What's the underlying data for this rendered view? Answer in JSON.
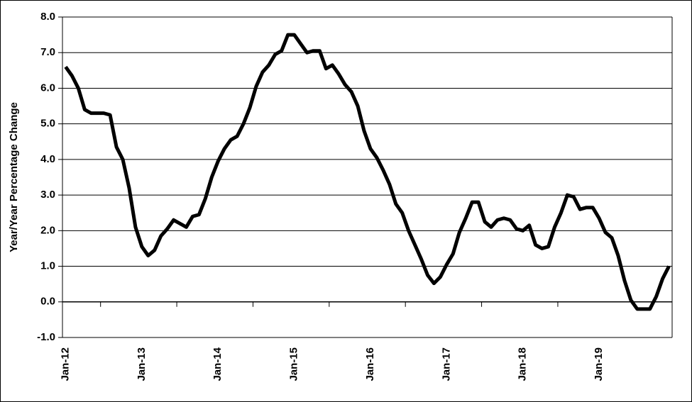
{
  "chart_data": {
    "type": "line",
    "y_label": "Year/Year Percentage Change",
    "categories": [
      "Jan-12",
      null,
      null,
      null,
      null,
      null,
      null,
      null,
      null,
      null,
      null,
      null,
      "Jan-13",
      null,
      null,
      null,
      null,
      null,
      null,
      null,
      null,
      null,
      null,
      null,
      "Jan-14",
      null,
      null,
      null,
      null,
      null,
      null,
      null,
      null,
      null,
      null,
      null,
      "Jan-15",
      null,
      null,
      null,
      null,
      null,
      null,
      null,
      null,
      null,
      null,
      null,
      "Jan-16",
      null,
      null,
      null,
      null,
      null,
      null,
      null,
      null,
      null,
      null,
      null,
      "Jan-17",
      null,
      null,
      null,
      null,
      null,
      null,
      null,
      null,
      null,
      null,
      null,
      "Jan-18",
      null,
      null,
      null,
      null,
      null,
      null,
      null,
      null,
      null,
      null,
      null,
      "Jan-19",
      null,
      null,
      null,
      null,
      null,
      null,
      null,
      null,
      null,
      null,
      null
    ],
    "values": [
      6.6,
      6.35,
      6.0,
      5.4,
      5.3,
      5.3,
      5.3,
      5.25,
      4.35,
      4.0,
      3.2,
      2.1,
      1.55,
      1.3,
      1.45,
      1.85,
      2.05,
      2.3,
      2.2,
      2.1,
      2.4,
      2.45,
      2.9,
      3.5,
      3.95,
      4.3,
      4.55,
      4.65,
      5.0,
      5.45,
      6.05,
      6.45,
      6.65,
      6.95,
      7.05,
      7.5,
      7.5,
      7.25,
      7.0,
      7.05,
      7.05,
      6.55,
      6.65,
      6.4,
      6.1,
      5.9,
      5.5,
      4.8,
      4.3,
      4.05,
      3.7,
      3.3,
      2.75,
      2.5,
      2.0,
      1.6,
      1.2,
      0.75,
      0.52,
      0.7,
      1.05,
      1.35,
      1.95,
      2.35,
      2.8,
      2.8,
      2.25,
      2.1,
      2.3,
      2.35,
      2.3,
      2.05,
      2.0,
      2.15,
      1.6,
      1.5,
      1.55,
      2.1,
      2.5,
      3.0,
      2.95,
      2.6,
      2.65,
      2.65,
      2.35,
      1.95,
      1.8,
      1.3,
      0.6,
      0.05,
      -0.2,
      -0.2,
      -0.2,
      0.15,
      0.65,
      1.0
    ],
    "color": "#000000",
    "ylim": [
      -1,
      8
    ],
    "yticks": [
      {
        "value": -1,
        "label": "-1.0"
      },
      {
        "value": 0,
        "label": "0.0"
      },
      {
        "value": 1,
        "label": "1.0"
      },
      {
        "value": 2,
        "label": "2.0"
      },
      {
        "value": 3,
        "label": "3.0"
      },
      {
        "value": 4,
        "label": "4.0"
      },
      {
        "value": 5,
        "label": "5.0"
      },
      {
        "value": 6,
        "label": "6.0"
      },
      {
        "value": 7,
        "label": "7.0"
      },
      {
        "value": 8,
        "label": "8.0"
      }
    ],
    "grid": true
  }
}
